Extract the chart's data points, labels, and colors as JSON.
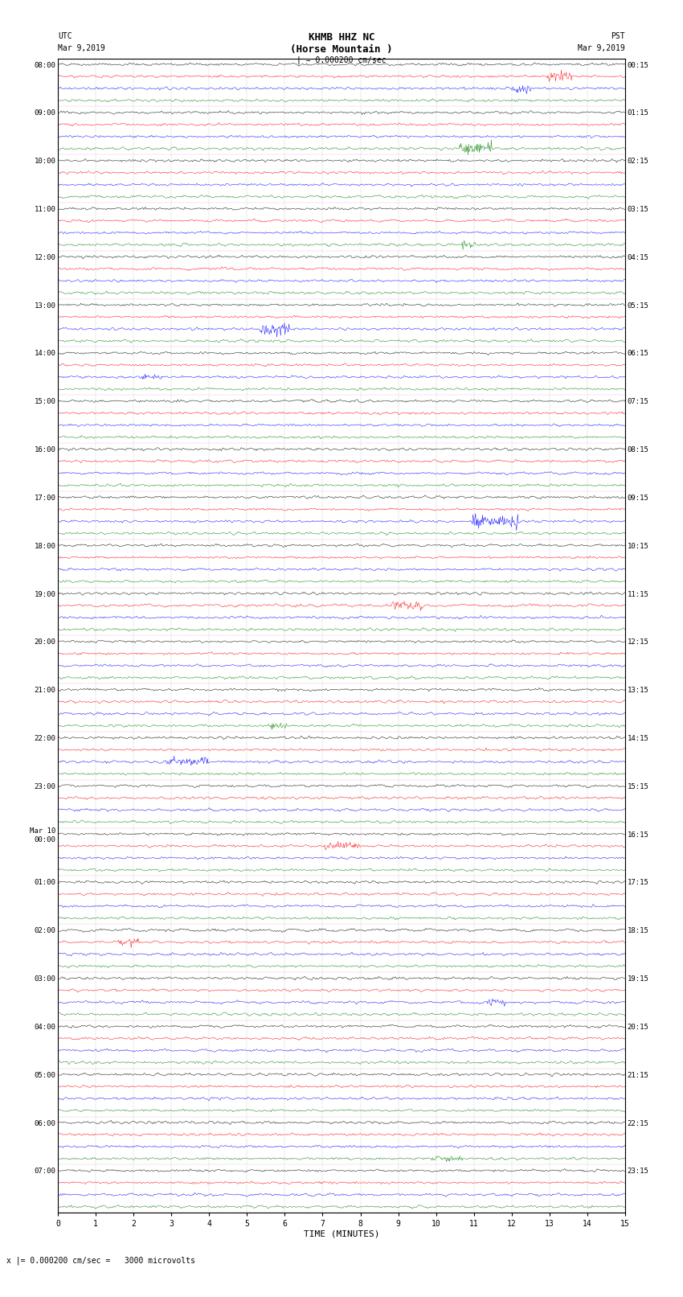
{
  "title_line1": "KHMB HHZ NC",
  "title_line2": "(Horse Mountain )",
  "title_scale": "| = 0.000200 cm/sec",
  "left_label_top": "UTC",
  "left_label_date": "Mar 9,2019",
  "right_label_top": "PST",
  "right_label_date": "Mar 9,2019",
  "bottom_label": "TIME (MINUTES)",
  "bottom_note": "x |= 0.000200 cm/sec =   3000 microvolts",
  "xlabel_ticks": [
    0,
    1,
    2,
    3,
    4,
    5,
    6,
    7,
    8,
    9,
    10,
    11,
    12,
    13,
    14,
    15
  ],
  "utc_times": [
    "08:00",
    "09:00",
    "10:00",
    "11:00",
    "12:00",
    "13:00",
    "14:00",
    "15:00",
    "16:00",
    "17:00",
    "18:00",
    "19:00",
    "20:00",
    "21:00",
    "22:00",
    "23:00",
    "Mar 10\n00:00",
    "01:00",
    "02:00",
    "03:00",
    "04:00",
    "05:00",
    "06:00",
    "07:00"
  ],
  "pst_times": [
    "00:15",
    "01:15",
    "02:15",
    "03:15",
    "04:15",
    "05:15",
    "06:15",
    "07:15",
    "08:15",
    "09:15",
    "10:15",
    "11:15",
    "12:15",
    "13:15",
    "14:15",
    "15:15",
    "16:15",
    "17:15",
    "18:15",
    "19:15",
    "20:15",
    "21:15",
    "22:15",
    "23:15"
  ],
  "colors": [
    "black",
    "red",
    "blue",
    "green"
  ],
  "n_rows": 24,
  "traces_per_row": 4,
  "n_points": 900,
  "fig_width": 8.5,
  "fig_height": 16.13,
  "bg_color": "white",
  "trace_color_cycle": [
    "black",
    "red",
    "blue",
    "green"
  ],
  "amplitude_scale": 0.18,
  "seed": 42
}
